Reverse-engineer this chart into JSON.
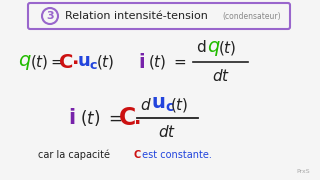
{
  "background_color": "#f5f5f5",
  "box_color": "#9966cc",
  "watermark": "PrxS",
  "colors": {
    "green": "#22bb00",
    "red": "#cc1111",
    "blue": "#2244dd",
    "purple": "#7722aa",
    "black": "#222222",
    "gray": "#888888"
  },
  "title_number": "3",
  "title_main": "Relation intensité-tension",
  "title_sub": "(condensateur)"
}
